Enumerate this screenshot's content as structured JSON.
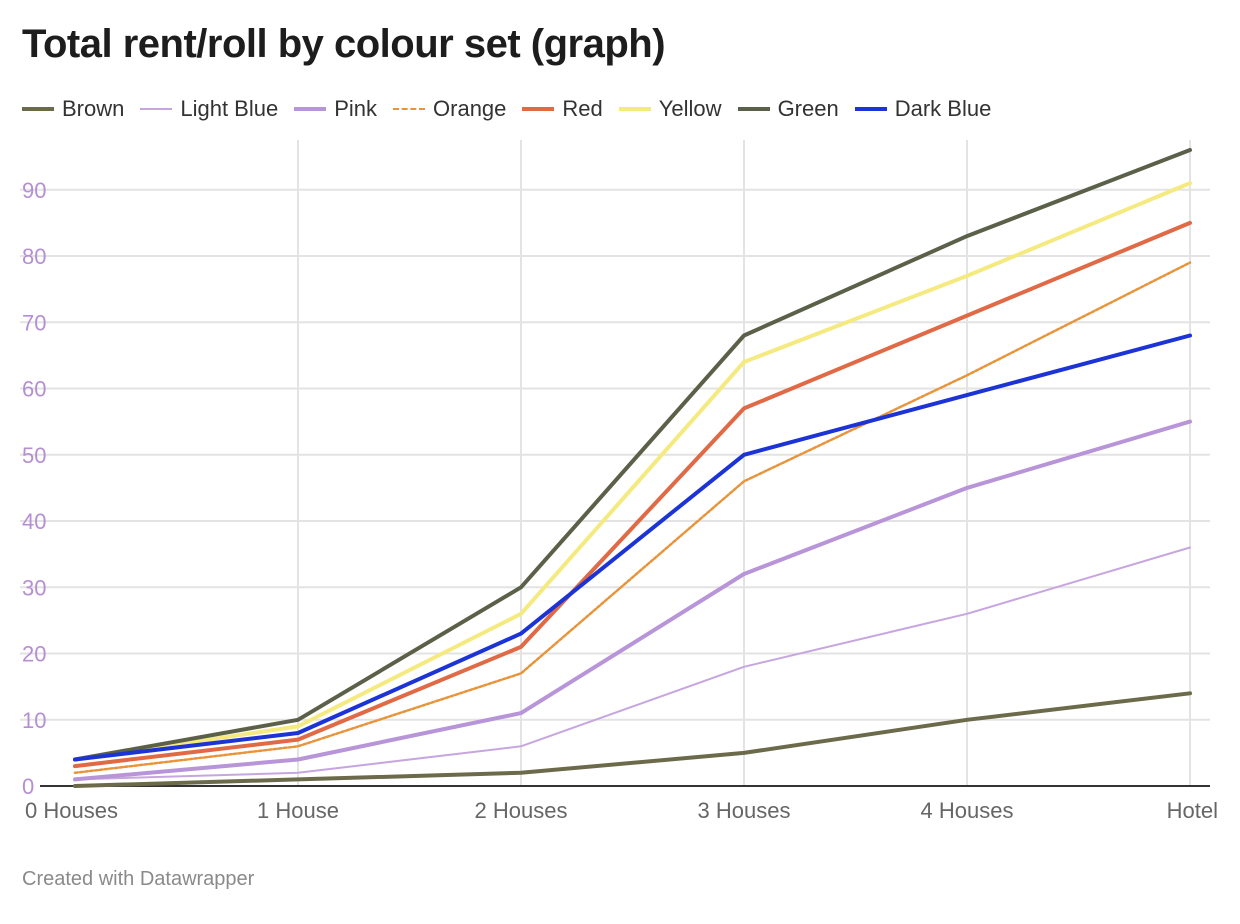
{
  "chart_data": {
    "type": "line",
    "title": "Total rent/roll by colour set (graph)",
    "categories": [
      "0 Houses",
      "1 House",
      "2 Houses",
      "3 Houses",
      "4 Houses",
      "Hotel"
    ],
    "y_ticks": [
      0,
      10,
      20,
      30,
      40,
      50,
      60,
      70,
      80,
      90
    ],
    "ylim": [
      0,
      96
    ],
    "grid": true,
    "legend_position": "top-left",
    "series": [
      {
        "name": "Brown",
        "color": "#6b6a4a",
        "style": "solid",
        "values": [
          0,
          1,
          2,
          5,
          10,
          14
        ]
      },
      {
        "name": "Light Blue",
        "color": "#c7a6e0",
        "style": "thin",
        "values": [
          1,
          2,
          6,
          18,
          26,
          36
        ]
      },
      {
        "name": "Pink",
        "color": "#b894d8",
        "style": "solid",
        "values": [
          1,
          4,
          11,
          32,
          45,
          55
        ]
      },
      {
        "name": "Orange",
        "color": "#e8943a",
        "style": "dashed",
        "values": [
          2,
          6,
          17,
          46,
          62,
          79
        ]
      },
      {
        "name": "Red",
        "color": "#e06a45",
        "style": "solid",
        "values": [
          3,
          7,
          21,
          57,
          71,
          85
        ]
      },
      {
        "name": "Yellow",
        "color": "#f5ea80",
        "style": "solid",
        "values": [
          4,
          9,
          26,
          64,
          77,
          91
        ]
      },
      {
        "name": "Green",
        "color": "#5b6048",
        "style": "solid",
        "values": [
          4,
          10,
          30,
          68,
          83,
          96
        ]
      },
      {
        "name": "Dark Blue",
        "color": "#1c34d6",
        "style": "solid",
        "values": [
          4,
          8,
          23,
          50,
          59,
          68
        ]
      }
    ]
  },
  "footer": "Created with Datawrapper",
  "colors": {
    "tick_label_y": "#b58fd4",
    "tick_label_x": "#666666",
    "grid": "#e3e3e3",
    "axis": "#333333"
  }
}
